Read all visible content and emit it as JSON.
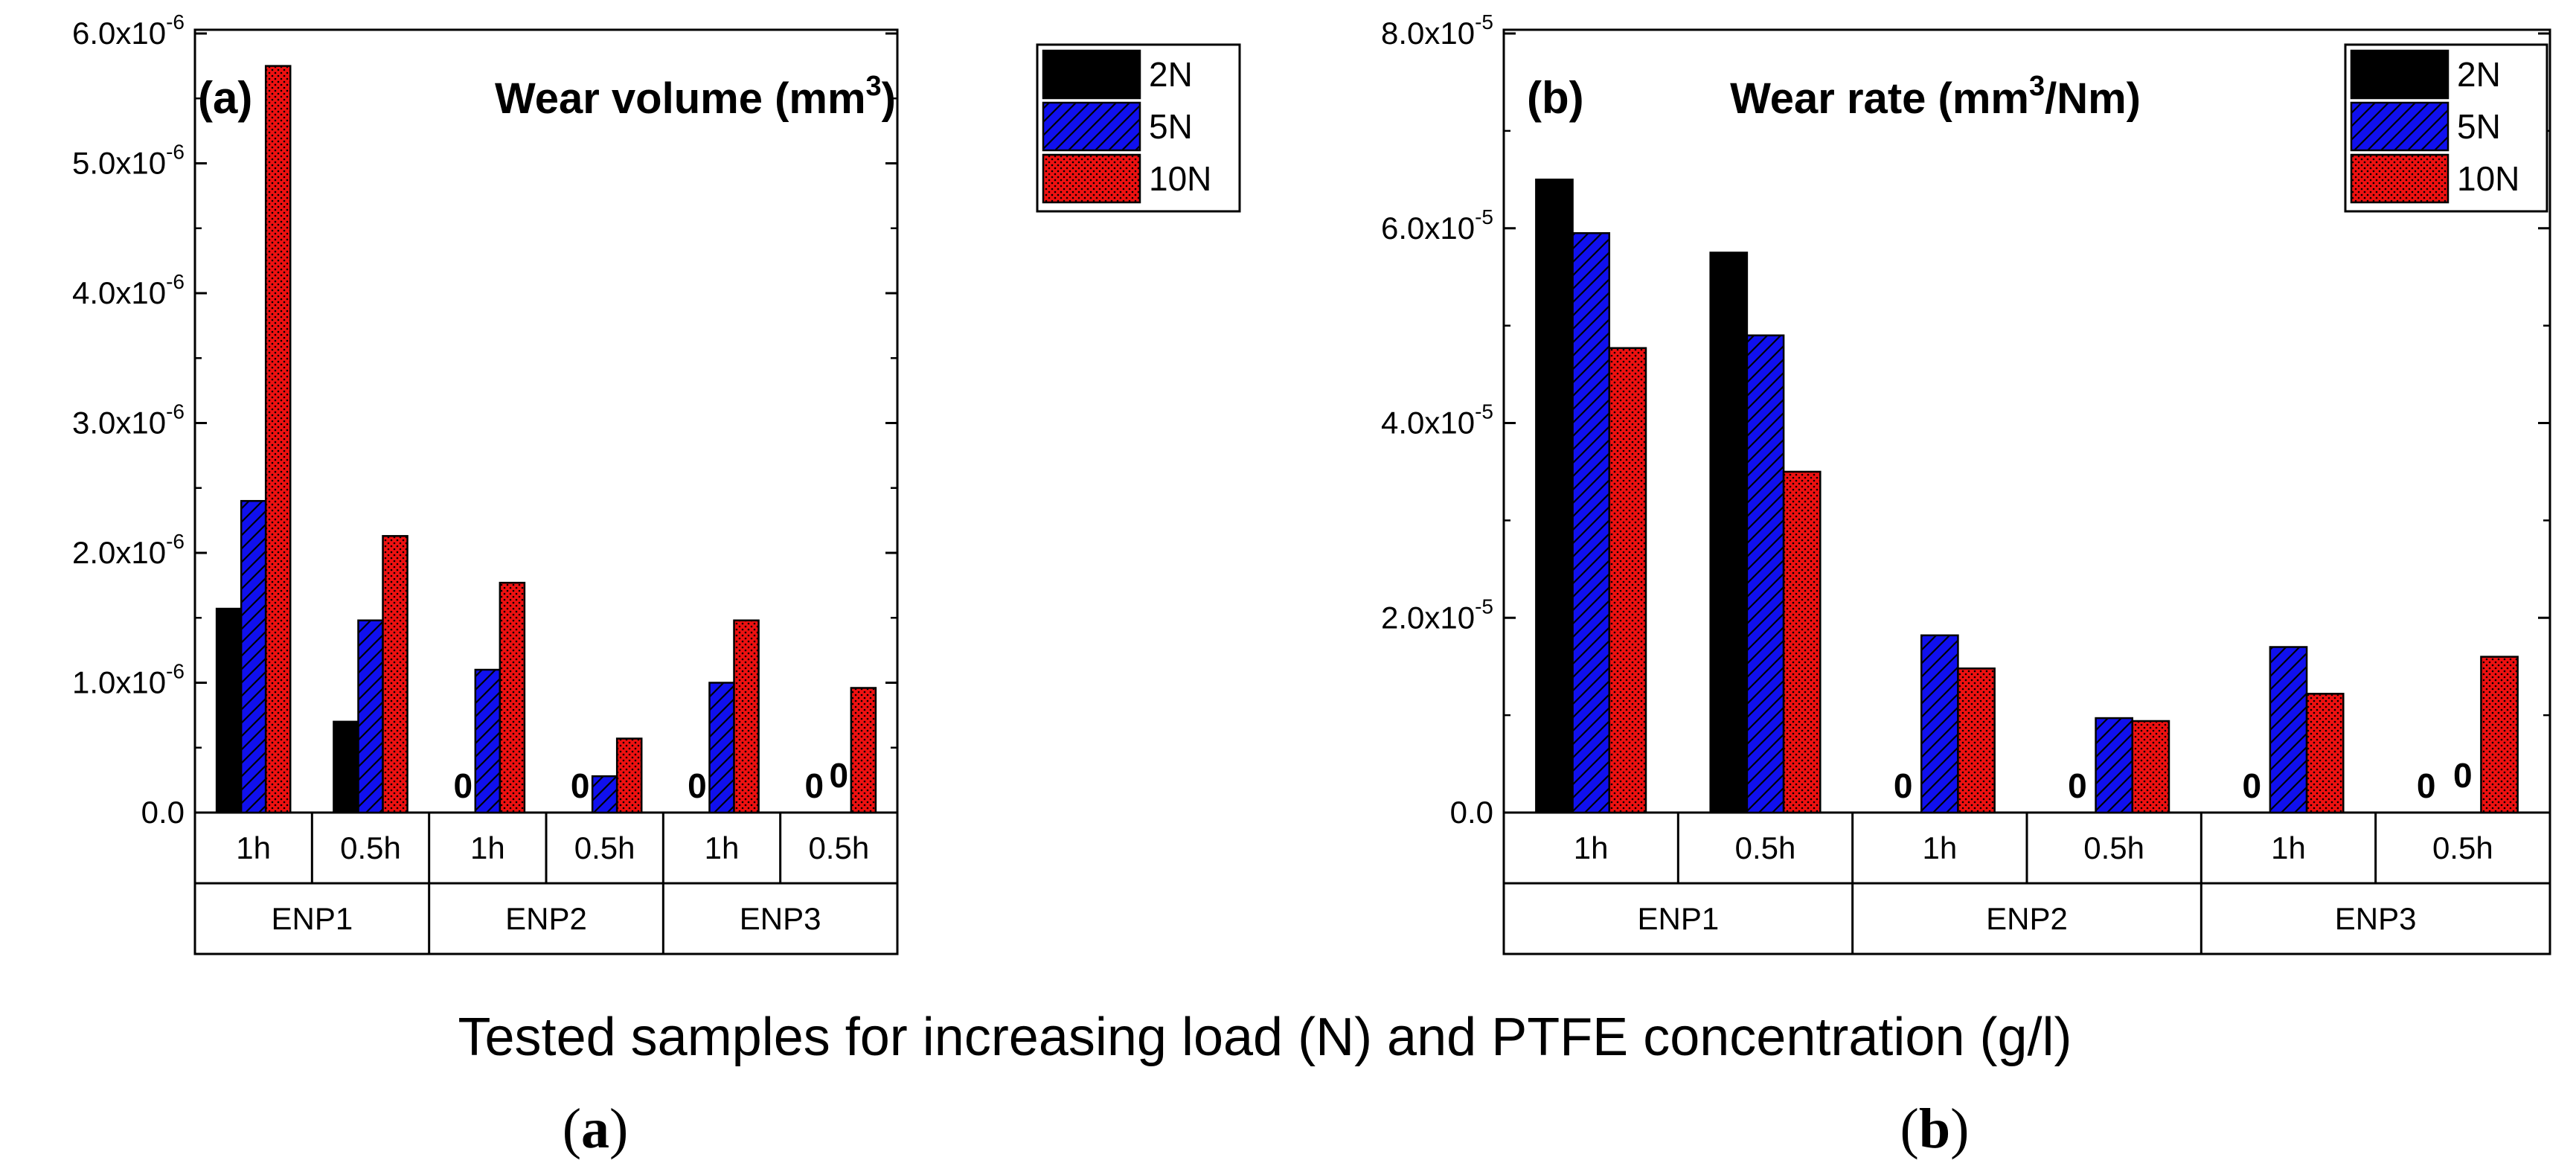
{
  "figure": {
    "xlabel": "Tested samples for increasing load (N) and PTFE concentration (g/l)",
    "captions": [
      {
        "open": "(",
        "letter": "a",
        "close": ")"
      },
      {
        "open": "(",
        "letter": "b",
        "close": ")"
      }
    ]
  },
  "colors": {
    "2N": "#000000",
    "5N": "#1010ee",
    "10N": "#ee1111"
  },
  "chart_data": [
    {
      "type": "bar",
      "panel": "(a)",
      "title": "Wear volume (mm",
      "title_sup": "3",
      "title_end": ")",
      "ylim": [
        0,
        6e-06
      ],
      "yticks": [
        {
          "value": 0,
          "mant": "0.0",
          "exp": ""
        },
        {
          "value": 1e-06,
          "mant": "1.0x10",
          "exp": "-6"
        },
        {
          "value": 2e-06,
          "mant": "2.0x10",
          "exp": "-6"
        },
        {
          "value": 3e-06,
          "mant": "3.0x10",
          "exp": "-6"
        },
        {
          "value": 4e-06,
          "mant": "4.0x10",
          "exp": "-6"
        },
        {
          "value": 5e-06,
          "mant": "5.0x10",
          "exp": "-6"
        },
        {
          "value": 6e-06,
          "mant": "6.0x10",
          "exp": "-6"
        }
      ],
      "categories": [
        "1h",
        "0.5h",
        "1h",
        "0.5h",
        "1h",
        "0.5h"
      ],
      "groups": [
        "ENP1",
        "ENP2",
        "ENP3"
      ],
      "legend": [
        "2N",
        "5N",
        "10N"
      ],
      "series": [
        {
          "name": "2N",
          "values": [
            1.57e-06,
            7e-07,
            0,
            0,
            0,
            0
          ]
        },
        {
          "name": "5N",
          "values": [
            2.4e-06,
            1.48e-06,
            1.1e-06,
            2.8e-07,
            1e-06,
            0
          ]
        },
        {
          "name": "10N",
          "values": [
            5.75e-06,
            2.13e-06,
            1.77e-06,
            5.7e-07,
            1.48e-06,
            9.6e-07
          ]
        }
      ],
      "zero_labels": [
        {
          "series": "2N",
          "category": 2,
          "text": "0"
        },
        {
          "series": "2N",
          "category": 3,
          "text": "0"
        },
        {
          "series": "2N",
          "category": 4,
          "text": "0"
        },
        {
          "series": "2N",
          "category": 5,
          "text": "0"
        },
        {
          "series": "5N",
          "category": 5,
          "text": "0"
        }
      ]
    },
    {
      "type": "bar",
      "panel": "(b)",
      "title": "Wear rate (mm",
      "title_sup": "3",
      "title_end": "/Nm)",
      "ylim": [
        0,
        8e-05
      ],
      "yticks": [
        {
          "value": 0,
          "mant": "0.0",
          "exp": ""
        },
        {
          "value": 2e-05,
          "mant": "2.0x10",
          "exp": "-5"
        },
        {
          "value": 4e-05,
          "mant": "4.0x10",
          "exp": "-5"
        },
        {
          "value": 6e-05,
          "mant": "6.0x10",
          "exp": "-5"
        },
        {
          "value": 8e-05,
          "mant": "8.0x10",
          "exp": "-5"
        }
      ],
      "categories": [
        "1h",
        "0.5h",
        "1h",
        "0.5h",
        "1h",
        "0.5h"
      ],
      "groups": [
        "ENP1",
        "ENP2",
        "ENP3"
      ],
      "legend": [
        "2N",
        "5N",
        "10N"
      ],
      "series": [
        {
          "name": "2N",
          "values": [
            6.5e-05,
            5.75e-05,
            0,
            0,
            0,
            0
          ]
        },
        {
          "name": "5N",
          "values": [
            5.95e-05,
            4.9e-05,
            1.82e-05,
            9.7e-06,
            1.7e-05,
            0
          ]
        },
        {
          "name": "10N",
          "values": [
            4.77e-05,
            3.5e-05,
            1.48e-05,
            9.4e-06,
            1.22e-05,
            1.6e-05
          ]
        }
      ],
      "zero_labels": [
        {
          "series": "2N",
          "category": 2,
          "text": "0"
        },
        {
          "series": "2N",
          "category": 3,
          "text": "0"
        },
        {
          "series": "2N",
          "category": 4,
          "text": "0"
        },
        {
          "series": "2N",
          "category": 5,
          "text": "0"
        },
        {
          "series": "5N",
          "category": 5,
          "text": "0"
        }
      ]
    }
  ]
}
